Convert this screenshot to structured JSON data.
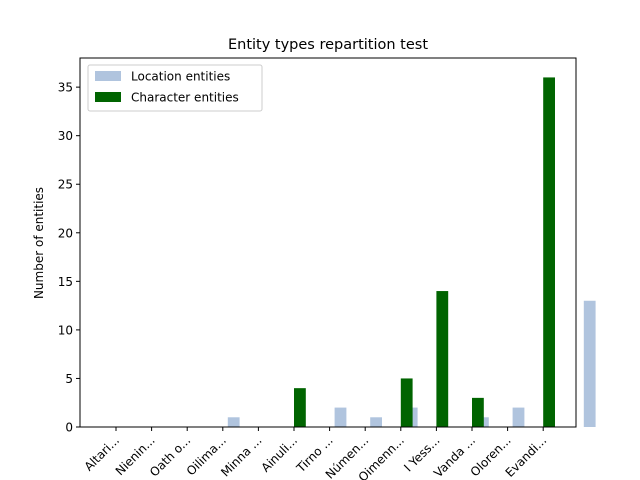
{
  "chart_data": {
    "type": "bar",
    "title": "Entity types repartition test",
    "xlabel": "",
    "ylabel": "Number of entities",
    "ylim": [
      0,
      38
    ],
    "yticks": [
      0,
      5,
      10,
      15,
      20,
      25,
      30,
      35
    ],
    "grid": false,
    "legend_position": "top-left",
    "categories": [
      "Altari...",
      "Nienin...",
      "Oath o...",
      "Oilima...",
      "Minna ...",
      "Ainuli...",
      "Tirno ...",
      "Númen...",
      "Oimenn...",
      "I Yess...",
      "Vanda ...",
      "Oloren...",
      "Evandi..."
    ],
    "series": [
      {
        "name": "Location entities",
        "color": "#b0c4de",
        "values": [
          0,
          0,
          1,
          0,
          0,
          2,
          1,
          2,
          0,
          1,
          2,
          0,
          13
        ]
      },
      {
        "name": "Character entities",
        "color": "#006400",
        "values": [
          0,
          0,
          0,
          0,
          0,
          4,
          0,
          0,
          5,
          14,
          3,
          0,
          36
        ]
      }
    ]
  }
}
